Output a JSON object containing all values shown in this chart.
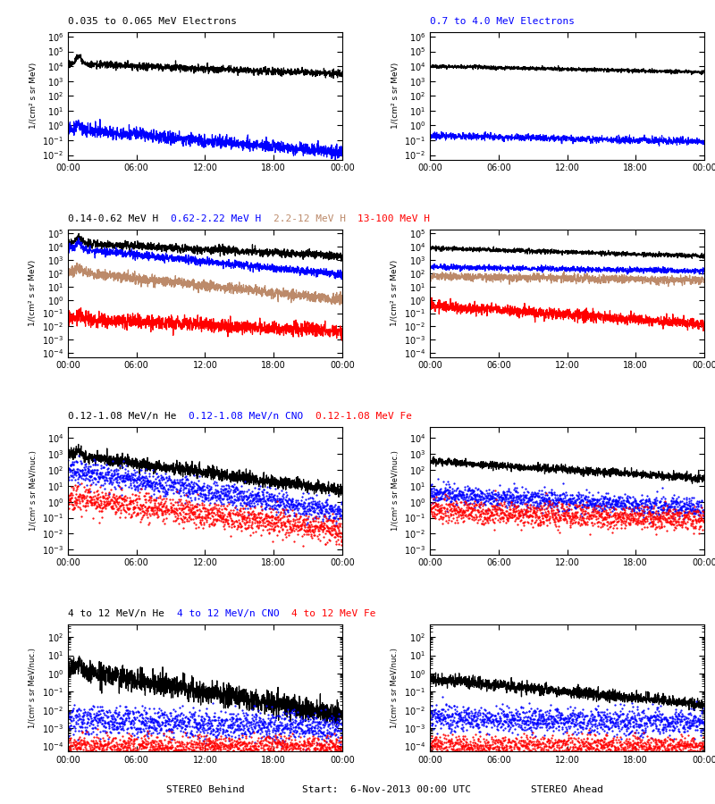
{
  "titles_row0": [
    {
      "text": "0.035 to 0.065 MeV Electrons",
      "color": "black"
    },
    {
      "text": "    0.7 to 4.0 MeV Electrons",
      "color": "blue"
    }
  ],
  "titles_row1_left": [
    {
      "text": "0.14-0.62 MeV H  ",
      "color": "black"
    },
    {
      "text": "0.62-2.22 MeV H  ",
      "color": "blue"
    },
    {
      "text": "2.2-12 MeV H  ",
      "color": "#bc8a6a"
    },
    {
      "text": "13-100 MeV H",
      "color": "red"
    }
  ],
  "titles_row2_left": [
    {
      "text": "0.12-1.08 MeV/n He  ",
      "color": "black"
    },
    {
      "text": "0.12-1.08 MeV/n CNO  ",
      "color": "blue"
    },
    {
      "text": "0.12-1.08 MeV Fe",
      "color": "red"
    }
  ],
  "titles_row3_left": [
    {
      "text": "4 to 12 MeV/n He  ",
      "color": "black"
    },
    {
      "text": "4 to 12 MeV/n CNO  ",
      "color": "blue"
    },
    {
      "text": "4 to 12 MeV Fe",
      "color": "red"
    }
  ],
  "xlabel_left": "STEREO Behind",
  "xlabel_center": "Start:  6-Nov-2013 00:00 UTC",
  "xlabel_right": "STEREO Ahead",
  "xtick_labels": [
    "00:00",
    "06:00",
    "12:00",
    "18:00",
    "00:00"
  ],
  "ylabel_electrons": "1/(cm² s sr MeV)",
  "ylabel_H": "1/(cm² s sr MeV)",
  "ylabel_heavy": "1/(cm² s sr MeV/nuc.)",
  "row0_ylim": [
    0.005,
    2000000.0
  ],
  "row1_ylim": [
    5e-05,
    200000.0
  ],
  "row2_ylim": [
    0.0005,
    50000.0
  ],
  "row3_ylim": [
    5e-05,
    500.0
  ],
  "brown_color": "#bc8a6a"
}
